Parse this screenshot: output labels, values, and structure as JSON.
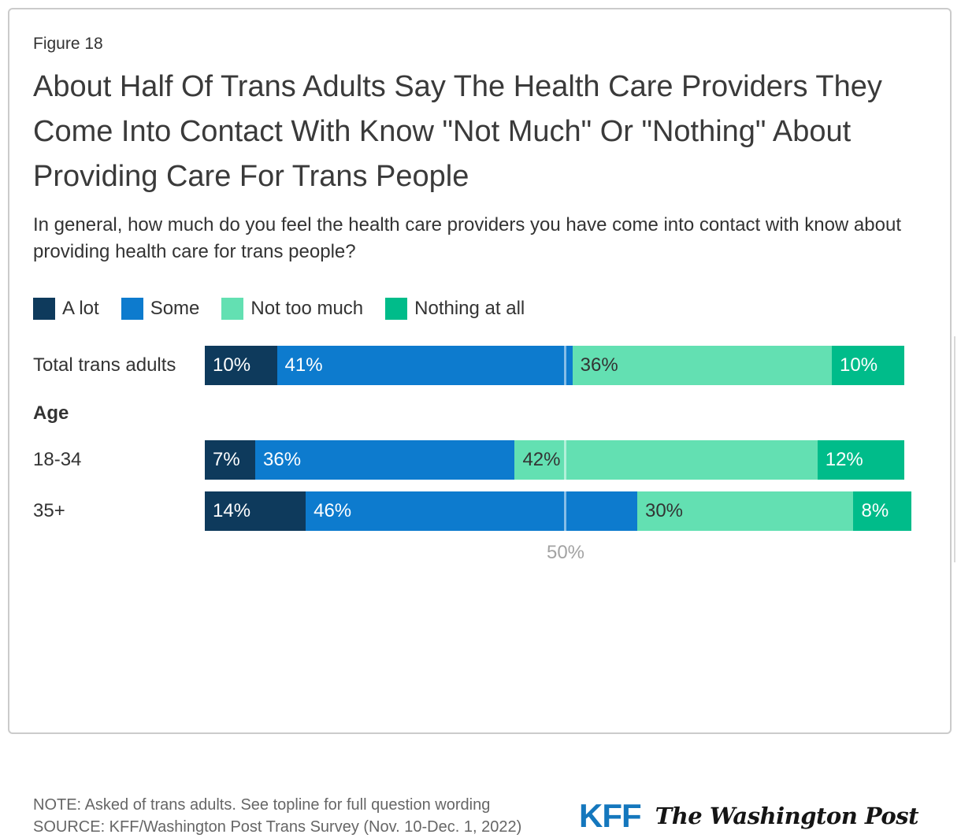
{
  "figure_label": "Figure 18",
  "title": "About Half Of Trans Adults Say The Health Care Providers They Come Into Contact With Know \"Not Much\" Or \"Nothing\" About Providing Care For Trans People",
  "subtitle": "In general, how much do you feel the health care providers you have come into contact with know about providing health care for trans people?",
  "chart_data": {
    "type": "bar",
    "stacked": true,
    "orientation": "horizontal",
    "unit": "percent",
    "legend": [
      "A lot",
      "Some",
      "Not too much",
      "Nothing at all"
    ],
    "series_colors": [
      "#0e3a5c",
      "#0d7bce",
      "#63e0b2",
      "#00bc8a"
    ],
    "series_label_colors": [
      "#ffffff",
      "#ffffff",
      "#333333",
      "#ffffff"
    ],
    "groups": [
      {
        "label": "Total trans adults",
        "values": [
          10,
          41,
          36,
          10
        ]
      },
      {
        "section": "Age"
      },
      {
        "label": "18-34",
        "values": [
          7,
          36,
          42,
          12
        ]
      },
      {
        "label": "35+",
        "values": [
          14,
          46,
          30,
          8
        ]
      }
    ],
    "x_axis": {
      "tick_value": 50,
      "tick_label": "50%",
      "range": [
        0,
        100
      ],
      "gridline_at_tick": true
    }
  },
  "note": "NOTE: Asked of trans adults. See topline for full question wording",
  "source": "SOURCE: KFF/Washington Post Trans Survey (Nov. 10-Dec. 1, 2022)",
  "logos": {
    "kff": "KFF",
    "washington_post": "The Washington Post"
  },
  "colors": {
    "kff_blue": "#1477bd",
    "card_border": "#cbcbcb",
    "axis_label": "#a3a3a3",
    "note_text": "#666666"
  }
}
